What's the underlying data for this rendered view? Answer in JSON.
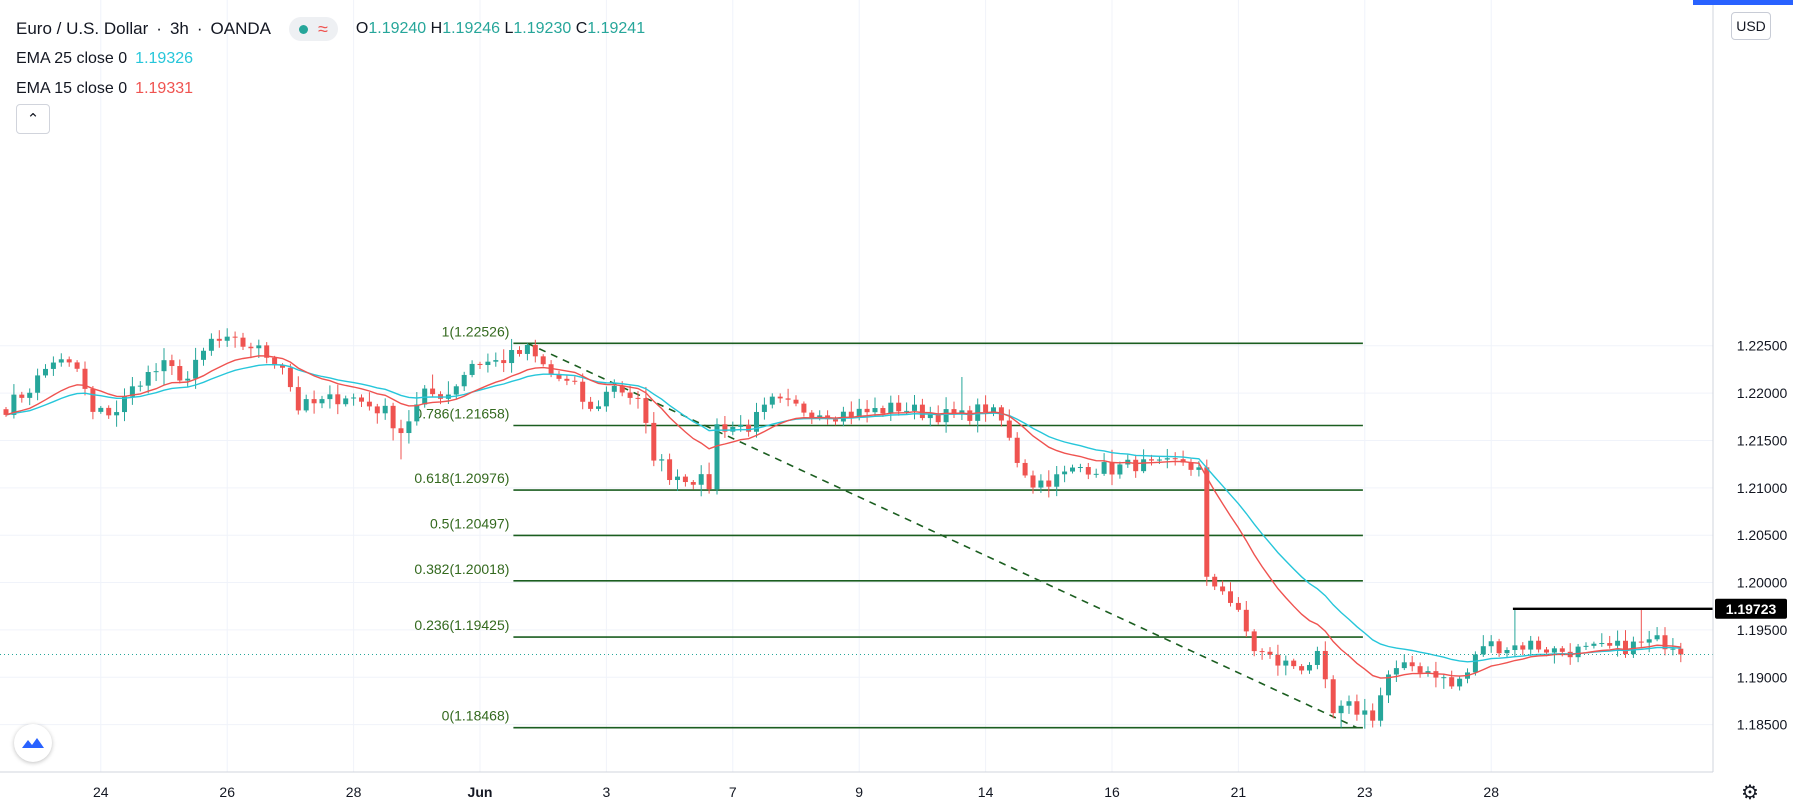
{
  "legend": {
    "symbol": "Euro / U.S. Dollar",
    "interval": "3h",
    "exchange": "OANDA",
    "open_label": "O",
    "open": "1.19240",
    "high_label": "H",
    "high": "1.19246",
    "low_label": "L",
    "low": "1.19230",
    "close_label": "C",
    "close": "1.19241",
    "ema25_label": "EMA 25 close 0",
    "ema25_value": "1.19326",
    "ema15_label": "EMA 15 close 0",
    "ema15_value": "1.19331",
    "wave_icon": "≈"
  },
  "currency": "USD",
  "colors": {
    "up": "#26a69a",
    "down": "#ef5350",
    "ema25": "#26c6da",
    "ema15": "#ef5350",
    "fib": "#1b5e20",
    "resistance": "#000000"
  },
  "chart_data": {
    "type": "candlestick",
    "title": "Euro / U.S. Dollar · 3h · OANDA",
    "ylim": [
      1.18,
      1.2615
    ],
    "y_ticks": [
      {
        "value": 1.225,
        "label": "1.22500"
      },
      {
        "value": 1.22,
        "label": "1.22000"
      },
      {
        "value": 1.215,
        "label": "1.21500"
      },
      {
        "value": 1.21,
        "label": "1.21000"
      },
      {
        "value": 1.205,
        "label": "1.20500"
      },
      {
        "value": 1.2,
        "label": "1.20000"
      },
      {
        "value": 1.195,
        "label": "1.19500"
      },
      {
        "value": 1.19,
        "label": "1.19000"
      },
      {
        "value": 1.185,
        "label": "1.18500"
      }
    ],
    "x_ticks": [
      {
        "index": 12,
        "label": "24"
      },
      {
        "index": 28,
        "label": "26"
      },
      {
        "index": 44,
        "label": "28"
      },
      {
        "index": 60,
        "label": "Jun"
      },
      {
        "index": 76,
        "label": "3"
      },
      {
        "index": 92,
        "label": "7"
      },
      {
        "index": 108,
        "label": "9"
      },
      {
        "index": 124,
        "label": "14"
      },
      {
        "index": 140,
        "label": "16"
      },
      {
        "index": 156,
        "label": "21"
      },
      {
        "index": 172,
        "label": "23"
      },
      {
        "index": 188,
        "label": "28"
      }
    ],
    "fib_levels": [
      {
        "ratio": "1",
        "price": 1.22526,
        "label": "1(1.22526)"
      },
      {
        "ratio": "0.786",
        "price": 1.21658,
        "label": "0.786(1.21658)"
      },
      {
        "ratio": "0.618",
        "price": 1.20976,
        "label": "0.618(1.20976)"
      },
      {
        "ratio": "0.5",
        "price": 1.20497,
        "label": "0.5(1.20497)"
      },
      {
        "ratio": "0.382",
        "price": 1.20018,
        "label": "0.382(1.20018)"
      },
      {
        "ratio": "0.236",
        "price": 1.19425,
        "label": "0.236(1.19425)"
      },
      {
        "ratio": "0",
        "price": 1.18468,
        "label": "0(1.18468)"
      }
    ],
    "fib_range_index": [
      66,
      171
    ],
    "trend_line": {
      "from": {
        "index": 66,
        "price": 1.22526
      },
      "to": {
        "index": 171,
        "price": 1.18468
      }
    },
    "resistance": {
      "price": 1.19723,
      "label": "1.19723",
      "from_index": 191
    },
    "last_price": 1.19241,
    "anchors": [
      {
        "i": 0,
        "p": 1.2185
      },
      {
        "i": 3,
        "p": 1.2205
      },
      {
        "i": 6,
        "p": 1.2235
      },
      {
        "i": 9,
        "p": 1.2225
      },
      {
        "i": 11,
        "p": 1.2178
      },
      {
        "i": 14,
        "p": 1.2182
      },
      {
        "i": 17,
        "p": 1.2215
      },
      {
        "i": 20,
        "p": 1.2228
      },
      {
        "i": 23,
        "p": 1.2215
      },
      {
        "i": 26,
        "p": 1.2255
      },
      {
        "i": 31,
        "p": 1.225
      },
      {
        "i": 35,
        "p": 1.223
      },
      {
        "i": 37,
        "p": 1.2185
      },
      {
        "i": 40,
        "p": 1.219
      },
      {
        "i": 43,
        "p": 1.2198
      },
      {
        "i": 48,
        "p": 1.218
      },
      {
        "i": 50,
        "p": 1.216
      },
      {
        "i": 53,
        "p": 1.2198
      },
      {
        "i": 56,
        "p": 1.22
      },
      {
        "i": 59,
        "p": 1.2232
      },
      {
        "i": 62,
        "p": 1.2233
      },
      {
        "i": 66,
        "p": 1.2245
      },
      {
        "i": 69,
        "p": 1.222
      },
      {
        "i": 72,
        "p": 1.2205
      },
      {
        "i": 74,
        "p": 1.218
      },
      {
        "i": 77,
        "p": 1.221
      },
      {
        "i": 80,
        "p": 1.219
      },
      {
        "i": 82,
        "p": 1.2135
      },
      {
        "i": 84,
        "p": 1.2115
      },
      {
        "i": 87,
        "p": 1.211
      },
      {
        "i": 89,
        "p": 1.2103
      },
      {
        "i": 90,
        "p": 1.2165
      },
      {
        "i": 94,
        "p": 1.2165
      },
      {
        "i": 97,
        "p": 1.219
      },
      {
        "i": 101,
        "p": 1.2183
      },
      {
        "i": 105,
        "p": 1.2178
      },
      {
        "i": 109,
        "p": 1.218
      },
      {
        "i": 113,
        "p": 1.2185
      },
      {
        "i": 117,
        "p": 1.2178
      },
      {
        "i": 121,
        "p": 1.2175
      },
      {
        "i": 124,
        "p": 1.2185
      },
      {
        "i": 126,
        "p": 1.217
      },
      {
        "i": 128,
        "p": 1.213
      },
      {
        "i": 130,
        "p": 1.2105
      },
      {
        "i": 133,
        "p": 1.211
      },
      {
        "i": 136,
        "p": 1.2122
      },
      {
        "i": 140,
        "p": 1.212
      },
      {
        "i": 143,
        "p": 1.2125
      },
      {
        "i": 146,
        "p": 1.2122
      },
      {
        "i": 149,
        "p": 1.2128
      },
      {
        "i": 151,
        "p": 1.2118
      },
      {
        "i": 152,
        "p": 1.2
      },
      {
        "i": 154,
        "p": 1.1995
      },
      {
        "i": 156,
        "p": 1.1965
      },
      {
        "i": 158,
        "p": 1.193
      },
      {
        "i": 161,
        "p": 1.1915
      },
      {
        "i": 164,
        "p": 1.1912
      },
      {
        "i": 166,
        "p": 1.192
      },
      {
        "i": 168,
        "p": 1.186
      },
      {
        "i": 170,
        "p": 1.1868
      },
      {
        "i": 173,
        "p": 1.186
      },
      {
        "i": 175,
        "p": 1.1902
      },
      {
        "i": 178,
        "p": 1.1912
      },
      {
        "i": 181,
        "p": 1.1905
      },
      {
        "i": 183,
        "p": 1.189
      },
      {
        "i": 185,
        "p": 1.1905
      },
      {
        "i": 187,
        "p": 1.1935
      },
      {
        "i": 190,
        "p": 1.1932
      },
      {
        "i": 193,
        "p": 1.1935
      },
      {
        "i": 196,
        "p": 1.1928
      },
      {
        "i": 200,
        "p": 1.1928
      },
      {
        "i": 205,
        "p": 1.1932
      },
      {
        "i": 209,
        "p": 1.1938
      },
      {
        "i": 211,
        "p": 1.1936
      },
      {
        "i": 212,
        "p": 1.1924
      }
    ],
    "series_count": 213
  }
}
